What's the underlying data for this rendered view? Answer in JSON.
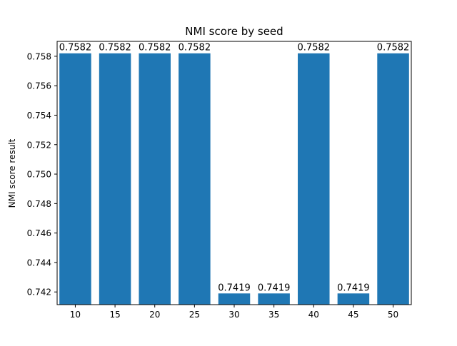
{
  "chart_data": {
    "type": "bar",
    "title": "NMI score by seed",
    "xlabel": "",
    "ylabel": "NMI score result",
    "categories": [
      "10",
      "15",
      "20",
      "25",
      "30",
      "35",
      "40",
      "45",
      "50"
    ],
    "values": [
      0.7582,
      0.7582,
      0.7582,
      0.7582,
      0.7419,
      0.7419,
      0.7582,
      0.7419,
      0.7582
    ],
    "data_labels": [
      "0.7582",
      "0.7582",
      "0.7582",
      "0.7582",
      "0.7419",
      "0.7419",
      "0.7582",
      "0.7419",
      "0.7582"
    ],
    "ylim": [
      0.74114,
      0.75901
    ],
    "yticks": [
      0.742,
      0.744,
      0.746,
      0.748,
      0.75,
      0.752,
      0.754,
      0.756,
      0.758
    ],
    "ytick_labels": [
      "0.742",
      "0.744",
      "0.746",
      "0.748",
      "0.750",
      "0.752",
      "0.754",
      "0.756",
      "0.758"
    ],
    "grid": false,
    "bar_color": "#1f77b4"
  }
}
